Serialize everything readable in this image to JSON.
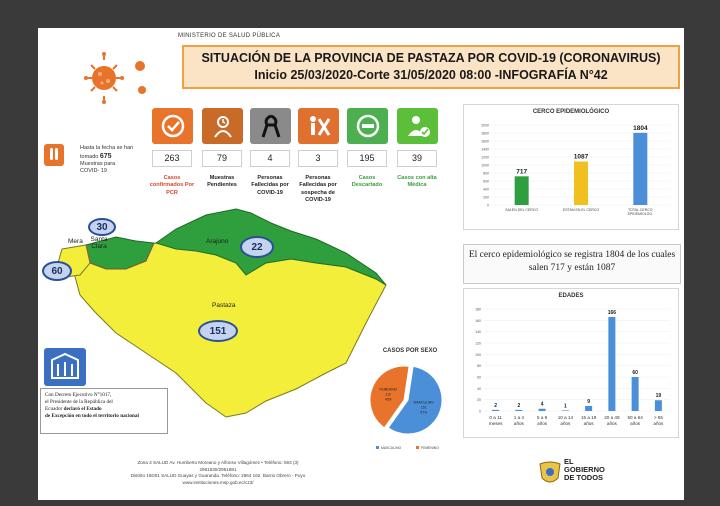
{
  "header": {
    "ministry": "MINISTERIO DE SALUD PÚBLICA",
    "title_line1": "SITUACIÓN DE LA PROVINCIA DE PASTAZA POR COVID-19 (CORONAVIRUS)",
    "title_line2": "Inicio 25/03/2020-Corte 31/05/2020 08:00 -INFOGRAFÍA N°42"
  },
  "tests_note": {
    "line1": "Hasta la fecha se han",
    "line2_prefix": "tomado",
    "count": "675",
    "line3": "Muestras para",
    "line4": "COVID- 19"
  },
  "stats": [
    {
      "value": "263",
      "label": "Casos confirmados Por PCR",
      "color": "#e8732a",
      "icon": "check-icon"
    },
    {
      "value": "79",
      "label": "Muestras Pendientes",
      "color": "#c86a28",
      "icon": "clock-person-icon"
    },
    {
      "value": "4",
      "label": "Personas Fallecidas por COVID-19",
      "color": "#8a8a8a",
      "icon": "ribbon-icon"
    },
    {
      "value": "3",
      "label": "Personas Fallecidas por sospecha de COVID-19",
      "color": "#e07030",
      "icon": "person-x-icon"
    },
    {
      "value": "195",
      "label": "Casos Descartado",
      "color": "#4caf50",
      "icon": "minus-icon"
    },
    {
      "value": "39",
      "label": "Casos con alta Médica",
      "color": "#5cbf3a",
      "icon": "person-check-icon"
    }
  ],
  "cerco": {
    "title": "CERCO EPIDEMIOLÓGICO",
    "note": "El cerco epidemiológico se registra 1804 de los cuales salen 717 y están 1087",
    "yticks": [
      "0",
      "200",
      "400",
      "600",
      "800",
      "1000",
      "1200",
      "1400",
      "1600",
      "1800",
      "2000"
    ]
  },
  "map": {
    "labels": {
      "arajuno": "Arajuno",
      "pastaza": "Pastaza",
      "mera": "Mera",
      "santa_clara": "Santa Clara"
    },
    "badges": {
      "mera": "60",
      "santa_clara": "30",
      "arajuno": "22",
      "pastaza": "151"
    },
    "colors": {
      "green": "#2f9e3c",
      "yellow": "#f2ee3a"
    }
  },
  "sexo": {
    "title": "CASOS POR SEXO",
    "legend": [
      "MASCULINO",
      "FEMENINO"
    ]
  },
  "edades": {
    "title": "EDADES",
    "yticks": [
      "0",
      "20",
      "40",
      "60",
      "80",
      "100",
      "120",
      "140",
      "160",
      "180"
    ]
  },
  "decree": {
    "line1": "Con Decreto Ejecutivo N°1017,",
    "line2": "el Presidente de la República del",
    "line3_prefix": "Ecuador",
    "line3_bold": "declaró el Estado",
    "line4": "de Excepción en todo el territorio nacional"
  },
  "footer": {
    "line1": "Zona 3 SALUD Av. Humberto Moreano y Alfonso Villagómez • Teléfono: 593 (3)",
    "line2": "2961530/2961881",
    "line3": "Distrito 16D01 SALUD Guayas y Guaranda. Teléfono: 2864 162. Barrio Obrero - Puyo",
    "line4": "www.instituciones.msp.gob.ec/cz3/"
  },
  "government": {
    "line1": "EL",
    "line2": "GOBIERNO",
    "line3": "DE TODOS"
  },
  "chart_data": [
    {
      "type": "bar",
      "title": "CERCO EPIDEMIOLÓGICO",
      "categories": [
        "SALEN DEL CERCO",
        "ESTÁN EN EL CERCO",
        "TOTAL CERCO EPIDEMIOLÓG."
      ],
      "values": [
        717,
        1087,
        1804
      ],
      "colors": [
        "#2e9e3e",
        "#f0c020",
        "#4a8fd8"
      ],
      "ylim": [
        0,
        2000
      ]
    },
    {
      "type": "pie",
      "title": "CASOS POR SEXO",
      "series": [
        {
          "name": "MASCULINO",
          "values": [
            151
          ],
          "color": "#4a8fd8",
          "slice_label": "MASCULINO 151 57%"
        },
        {
          "name": "FEMENINO",
          "values": [
            112
          ],
          "color": "#e8732a",
          "slice_label": "FEMENINO 112 43%"
        }
      ]
    },
    {
      "type": "bar",
      "title": "EDADES",
      "categories": [
        "0 a 11 meses",
        "1 a 4 años",
        "5 a 9 años",
        "10 a 14 años",
        "15 a 19 años",
        "20 a 49 años",
        "50 a 64 años",
        "> 65 años"
      ],
      "values": [
        2,
        2,
        4,
        1,
        9,
        166,
        60,
        19
      ],
      "color": "#4a8fd8",
      "ylim": [
        0,
        180
      ]
    }
  ]
}
